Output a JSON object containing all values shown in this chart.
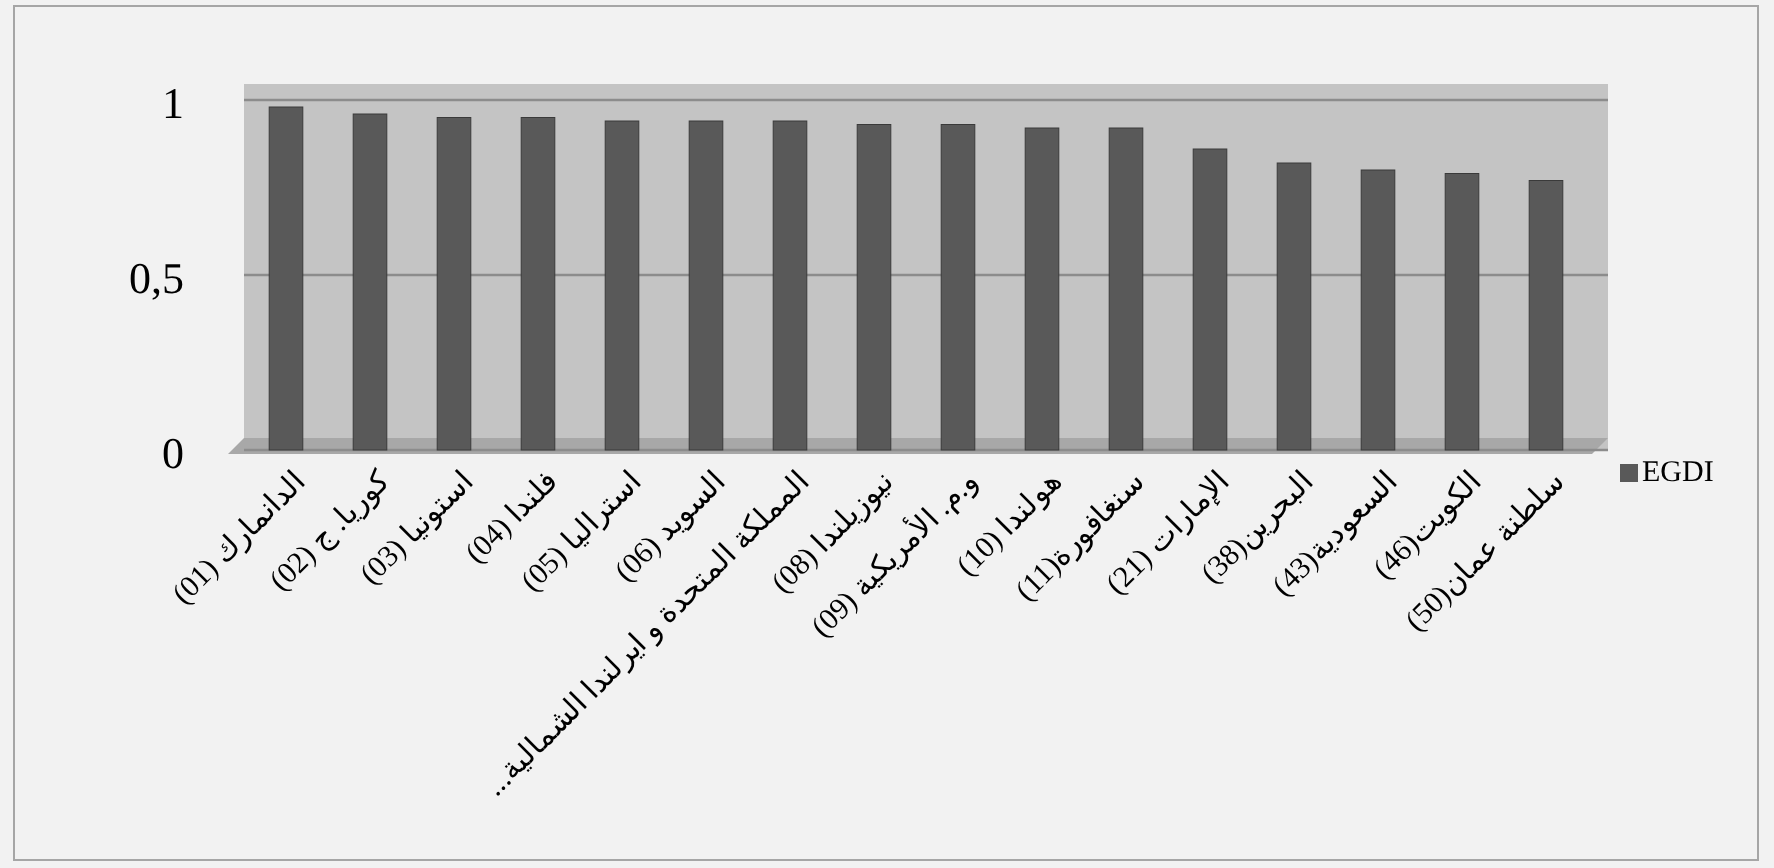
{
  "chart_data": {
    "type": "bar",
    "categories": [
      "الدانمارك (01)",
      "كوريا. ج (02)",
      "استونيا (03)",
      "فلندا (04)",
      "استراليا (05)",
      "السويد (06)",
      "المملكة المتحدة و ايرلندا الشمالية...",
      "نيوزيلندا (08)",
      "و.م. الأمريكية (09)",
      "هولندا (10)",
      "سنغافورة(11)",
      "الإمارات (21)",
      "البحرين(38)",
      "السعودية(43)",
      "الكويت(46)",
      "سلطنة عمان(50)"
    ],
    "series": [
      {
        "name": "EGDI",
        "color": "#595959",
        "values": [
          0.98,
          0.96,
          0.95,
          0.95,
          0.94,
          0.94,
          0.94,
          0.93,
          0.93,
          0.92,
          0.92,
          0.86,
          0.82,
          0.8,
          0.79,
          0.77
        ]
      }
    ],
    "ylim": [
      0,
      1
    ],
    "yticks": [
      0,
      {
        "value": 0.5,
        "label": "0,5"
      },
      1
    ],
    "grid": "y",
    "legend": "right"
  }
}
